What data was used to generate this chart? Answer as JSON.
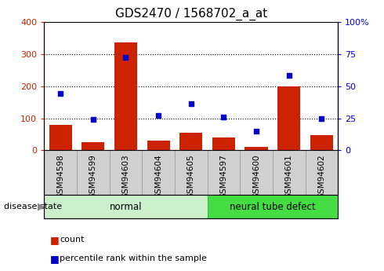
{
  "title": "GDS2470 / 1568702_a_at",
  "categories": [
    "GSM94598",
    "GSM94599",
    "GSM94603",
    "GSM94604",
    "GSM94605",
    "GSM94597",
    "GSM94600",
    "GSM94601",
    "GSM94602"
  ],
  "count_values": [
    80,
    25,
    335,
    30,
    55,
    40,
    10,
    198,
    48
  ],
  "percentile_values": [
    44,
    24,
    72,
    27,
    36,
    26,
    15,
    58,
    25
  ],
  "normal_indices": [
    0,
    1,
    2,
    3,
    4
  ],
  "defect_indices": [
    5,
    6,
    7,
    8
  ],
  "bar_color": "#cc2200",
  "dot_color": "#0000cc",
  "left_ylim": [
    0,
    400
  ],
  "right_ylim": [
    0,
    100
  ],
  "left_yticks": [
    0,
    100,
    200,
    300,
    400
  ],
  "right_yticks": [
    0,
    25,
    50,
    75,
    100
  ],
  "right_yticklabels": [
    "0",
    "25",
    "50",
    "75",
    "100%"
  ],
  "tick_bg": "#d0d0d0",
  "normal_bg": "#ccf0cc",
  "defect_bg": "#44dd44",
  "legend_count": "count",
  "legend_pct": "percentile rank within the sample",
  "disease_label": "disease state",
  "normal_label": "normal",
  "defect_label": "neural tube defect",
  "title_fontsize": 11,
  "axis_tick_fontsize": 8,
  "cat_fontsize": 7.5,
  "disease_fontsize": 8.5,
  "legend_fontsize": 8
}
